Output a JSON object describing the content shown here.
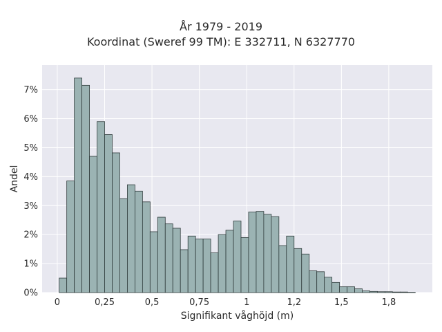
{
  "chart_data": {
    "type": "bar",
    "title_lines": [
      "År 1979 - 2019",
      "Koordinat (Sweref 99 TM): E 332711, N 6327770"
    ],
    "xlabel": "Signifikant våghöjd (m)",
    "ylabel": "Andel",
    "x_ticks": [
      {
        "value": 0,
        "label": "0"
      },
      {
        "value": 0.25,
        "label": "0,25"
      },
      {
        "value": 0.5,
        "label": "0,5"
      },
      {
        "value": 0.75,
        "label": "0,75"
      },
      {
        "value": 1,
        "label": "1"
      },
      {
        "value": 1.25,
        "label": "1,2"
      },
      {
        "value": 1.5,
        "label": "1,5"
      },
      {
        "value": 1.75,
        "label": "1,8"
      }
    ],
    "y_ticks": [
      {
        "value": 0,
        "label": "0%"
      },
      {
        "value": 1,
        "label": "1%"
      },
      {
        "value": 2,
        "label": "2%"
      },
      {
        "value": 3,
        "label": "3%"
      },
      {
        "value": 4,
        "label": "4%"
      },
      {
        "value": 5,
        "label": "5%"
      },
      {
        "value": 6,
        "label": "6%"
      },
      {
        "value": 7,
        "label": "7%"
      }
    ],
    "xlim": [
      -0.08,
      1.98
    ],
    "ylim": [
      0,
      7.85
    ],
    "bin_width": 0.04,
    "bin_starts": [
      0.01,
      0.05,
      0.09,
      0.13,
      0.17,
      0.21,
      0.25,
      0.29,
      0.33,
      0.37,
      0.41,
      0.45,
      0.49,
      0.53,
      0.57,
      0.61,
      0.65,
      0.69,
      0.73,
      0.77,
      0.81,
      0.85,
      0.89,
      0.93,
      0.97,
      1.01,
      1.05,
      1.09,
      1.13,
      1.17,
      1.21,
      1.25,
      1.29,
      1.33,
      1.37,
      1.41,
      1.45,
      1.49,
      1.53,
      1.57,
      1.61,
      1.65,
      1.69,
      1.73,
      1.77,
      1.81,
      1.85
    ],
    "values": [
      0.5,
      3.85,
      7.4,
      7.15,
      4.7,
      5.9,
      5.45,
      4.82,
      3.24,
      3.72,
      3.5,
      3.13,
      2.1,
      2.6,
      2.37,
      2.22,
      1.48,
      1.95,
      1.85,
      1.85,
      1.37,
      2.0,
      2.15,
      2.47,
      1.9,
      2.78,
      2.8,
      2.7,
      2.62,
      1.62,
      1.95,
      1.52,
      1.33,
      0.75,
      0.72,
      0.53,
      0.35,
      0.2,
      0.2,
      0.13,
      0.06,
      0.04,
      0.03,
      0.03,
      0.02,
      0.02,
      0.01
    ],
    "grid": true,
    "legend": "none",
    "colors": {
      "bar_fill": "#9bb3b3",
      "bar_edge": "#2f3b3b",
      "plot_bg": "#e8e8f0",
      "grid": "#ffffff"
    }
  }
}
